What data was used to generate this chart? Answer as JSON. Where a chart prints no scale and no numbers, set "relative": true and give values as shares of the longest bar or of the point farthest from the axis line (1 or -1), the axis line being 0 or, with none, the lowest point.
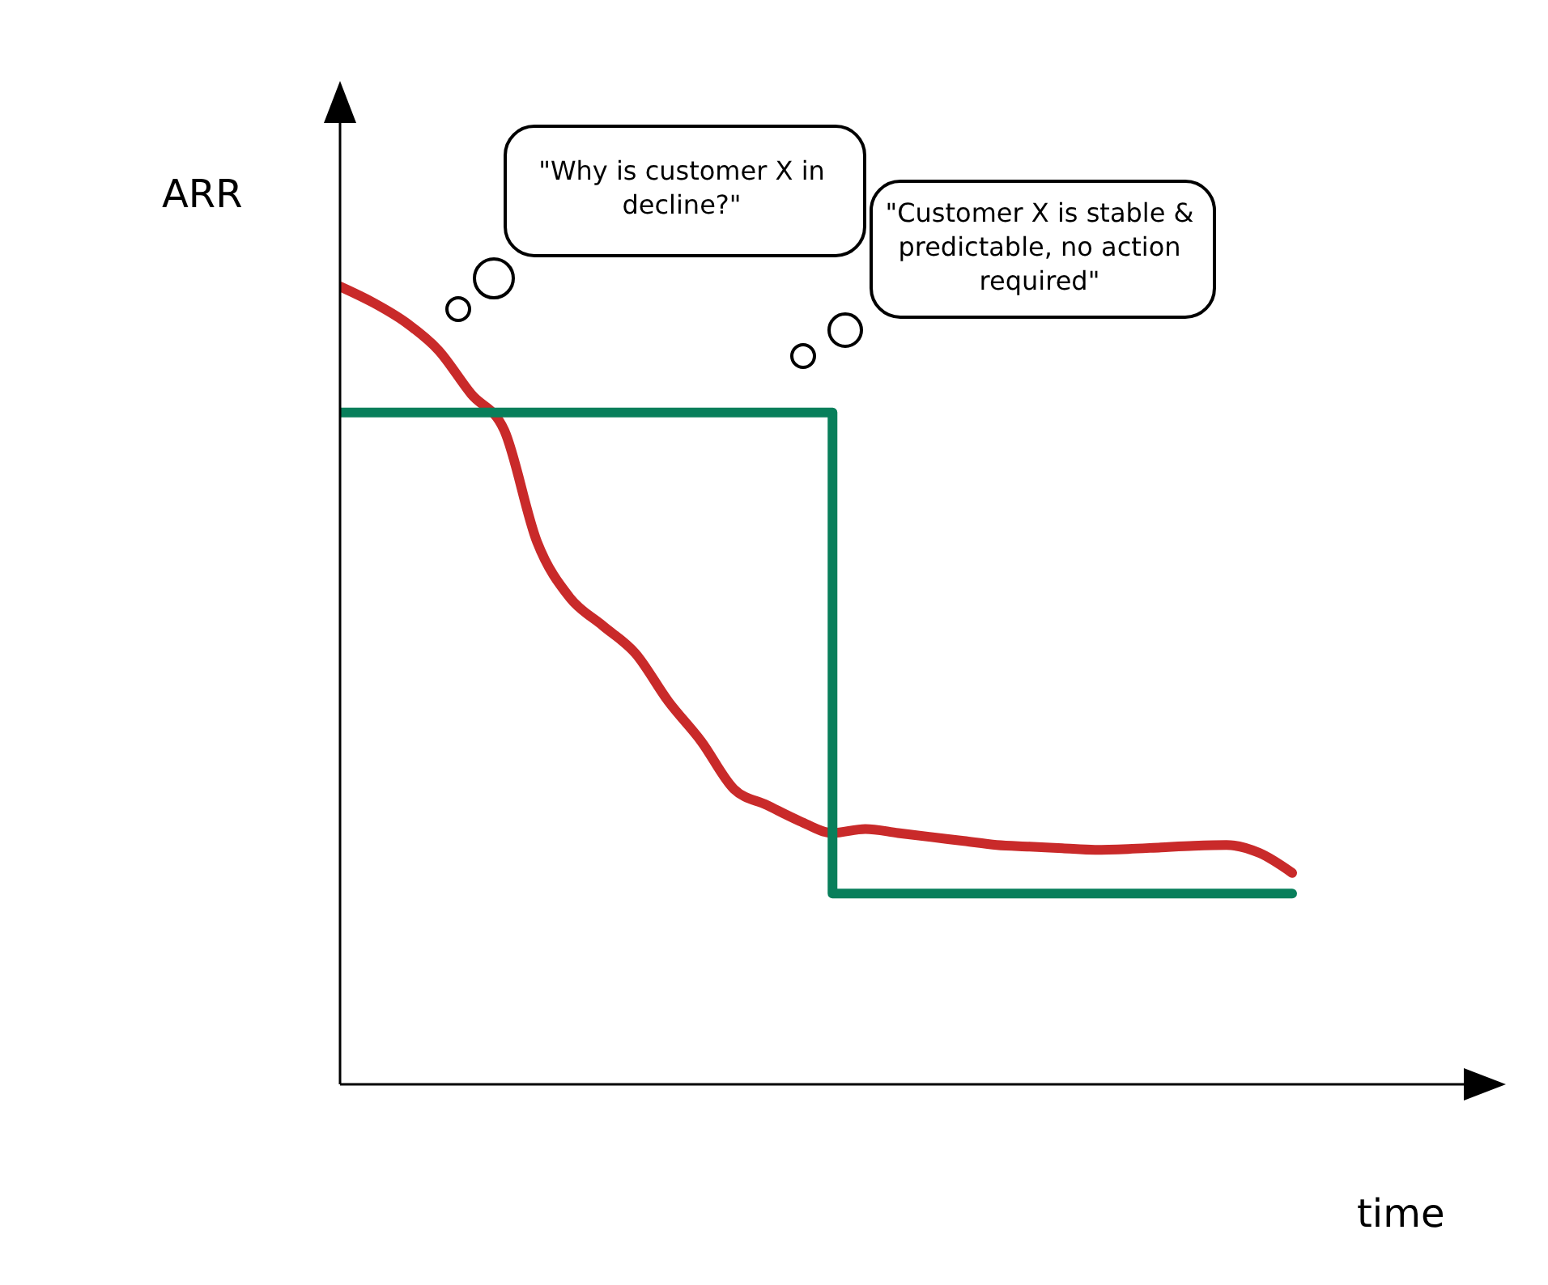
{
  "chart_data": {
    "type": "line",
    "relative": true,
    "xlabel": "time",
    "ylabel": "ARR",
    "marker": "none",
    "annotations": [
      "\"Why is customer X in decline?\"",
      "\"Customer X is stable & predictable, no action required\""
    ],
    "categories": [
      null,
      null,
      null,
      null,
      null,
      null,
      null,
      null,
      null,
      null,
      null,
      null,
      null,
      null,
      null,
      null,
      null,
      null,
      null,
      null,
      null,
      null,
      null,
      null,
      null,
      null,
      null,
      null,
      null,
      null
    ],
    "series": [
      {
        "type": "line",
        "color": "#c92a2a",
        "values": [
          1.0,
          0.98,
          0.955,
          0.92,
          0.865,
          0.82,
          0.68,
          0.61,
          0.575,
          0.54,
          0.48,
          0.43,
          0.37,
          0.35,
          0.33,
          0.315,
          0.32,
          0.315,
          0.31,
          0.305,
          0.3,
          0.298,
          0.296,
          0.294,
          0.295,
          0.297,
          0.299,
          0.3,
          0.29,
          0.265
        ]
      },
      {
        "type": "step",
        "color": "#087f5b",
        "values": [
          0.842,
          0.842,
          0.842,
          0.842,
          0.842,
          0.842,
          0.842,
          0.842,
          0.842,
          0.842,
          0.842,
          0.842,
          0.842,
          0.842,
          0.842,
          0.239,
          0.239,
          0.239,
          0.239,
          0.239,
          0.239,
          0.239,
          0.239,
          0.239,
          0.239,
          0.239,
          0.239,
          0.239,
          0.239,
          0.239
        ]
      }
    ]
  }
}
